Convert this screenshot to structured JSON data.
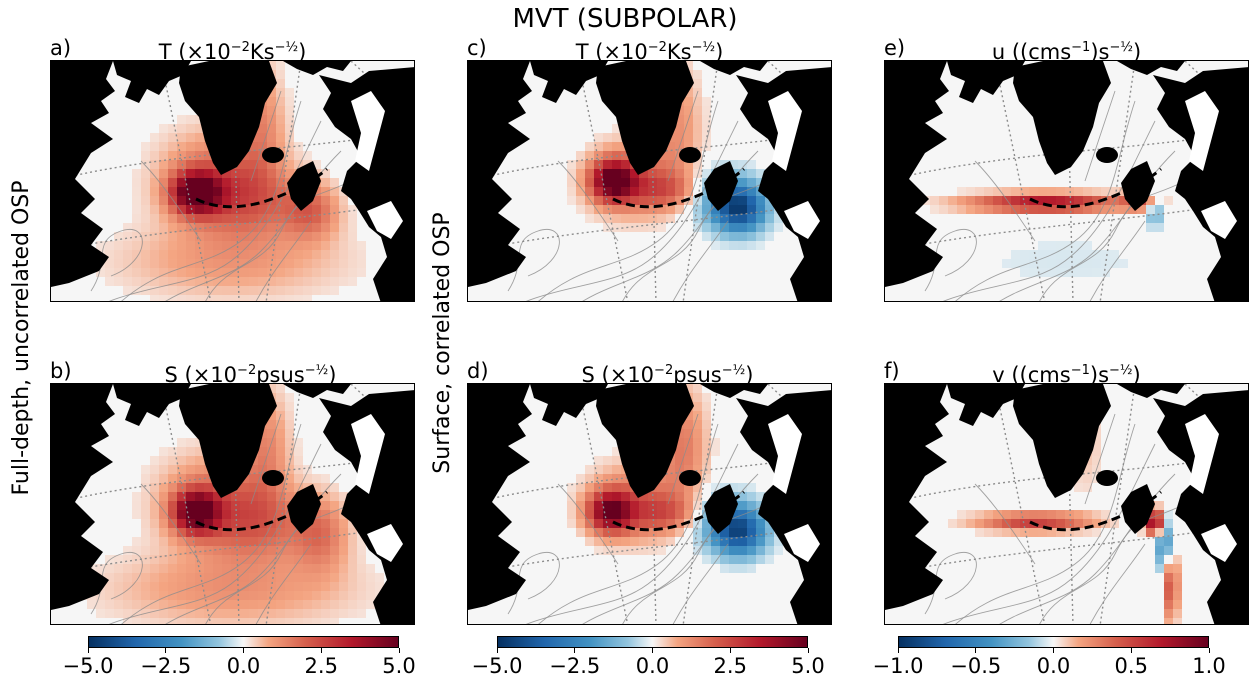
{
  "figure": {
    "suptitle": "MVT (SUBPOLAR)",
    "row_labels": {
      "left": "Full-depth, uncorrelated OSP",
      "middle": "Surface, correlated OSP"
    }
  },
  "chart_data": [
    {
      "type": "heatmap",
      "panel": "a",
      "letter": "a)",
      "title_main": "T (×10",
      "title_sup1": "−2",
      "title_mid": "Ks",
      "title_sup2": "−½",
      "title_end": ")",
      "cmap": "RdBu_r",
      "vrange": [
        -5,
        5
      ]
    },
    {
      "type": "heatmap",
      "panel": "b",
      "letter": "b)",
      "title_main": "S (×10",
      "title_sup1": "−2",
      "title_mid": "psus",
      "title_sup2": "−½",
      "title_end": ")",
      "cmap": "RdBu_r",
      "vrange": [
        -5,
        5
      ]
    },
    {
      "type": "heatmap",
      "panel": "c",
      "letter": "c)",
      "title_main": "T (×10",
      "title_sup1": "−2",
      "title_mid": "Ks",
      "title_sup2": "−½",
      "title_end": ")",
      "cmap": "RdBu_r",
      "vrange": [
        -5,
        5
      ]
    },
    {
      "type": "heatmap",
      "panel": "d",
      "letter": "d)",
      "title_main": "S (×10",
      "title_sup1": "−2",
      "title_mid": "psus",
      "title_sup2": "−½",
      "title_end": ")",
      "cmap": "RdBu_r",
      "vrange": [
        -5,
        5
      ]
    },
    {
      "type": "heatmap",
      "panel": "e",
      "letter": "e)",
      "title_main": "u ((cms",
      "title_sup1": "−1",
      "title_mid": ")s",
      "title_sup2": "−½",
      "title_end": ")",
      "cmap": "RdBu_r",
      "vrange": [
        -1,
        1
      ]
    },
    {
      "type": "heatmap",
      "panel": "f",
      "letter": "f)",
      "title_main": "v ((cms",
      "title_sup1": "−1",
      "title_mid": ")s",
      "title_sup2": "−½",
      "title_end": ")",
      "cmap": "RdBu_r",
      "vrange": [
        -1,
        1
      ]
    }
  ],
  "colorbars": [
    {
      "ticks": [
        "−5.0",
        "−2.5",
        "0.0",
        "2.5",
        "5.0"
      ]
    },
    {
      "ticks": [
        "−5.0",
        "−2.5",
        "0.0",
        "2.5",
        "5.0"
      ]
    },
    {
      "ticks": [
        "−1.0",
        "−0.5",
        "0.0",
        "0.5",
        "1.0"
      ]
    }
  ],
  "colors": {
    "land": "#000000",
    "ocean": "#f6f6f6",
    "section": "#000000",
    "streamline": "#8c8c8c",
    "grid": "#8c8c8c"
  }
}
